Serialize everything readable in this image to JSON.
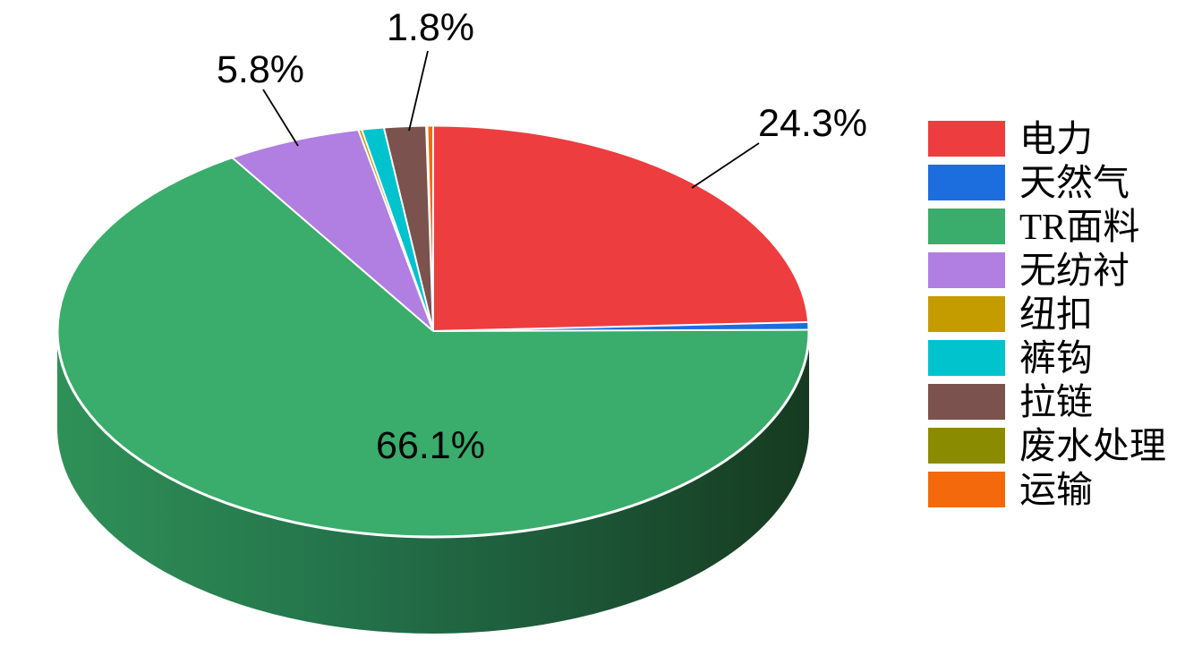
{
  "chart_data": {
    "type": "pie",
    "style": "3d",
    "title": "",
    "legend_position": "right",
    "background": "#ffffff",
    "series": [
      {
        "name": "电力",
        "value": 24.3,
        "label": "24.3%",
        "color": "#ED3D3F"
      },
      {
        "name": "天然气",
        "value": 0.6,
        "label": "",
        "color": "#1C6DDE"
      },
      {
        "name": "TR面料",
        "value": 66.1,
        "label": "66.1%",
        "color": "#3AAC6B"
      },
      {
        "name": "无纺衬",
        "value": 5.8,
        "label": "5.8%",
        "color": "#B07FE1"
      },
      {
        "name": "纽扣",
        "value": 0.15,
        "label": "",
        "color": "#C49C00"
      },
      {
        "name": "裤钩",
        "value": 0.95,
        "label": "",
        "color": "#00C3CE"
      },
      {
        "name": "拉链",
        "value": 1.8,
        "label": "1.8%",
        "color": "#7B524E"
      },
      {
        "name": "废水处理",
        "value": 0.05,
        "label": "",
        "color": "#8B8B00"
      },
      {
        "name": "运输",
        "value": 0.25,
        "label": "",
        "color": "#F4690B"
      }
    ],
    "side_colors": [
      "#2F9157",
      "#23714A",
      "#1C5435",
      "#163A20"
    ],
    "slice_border_color": "#ffffff"
  }
}
